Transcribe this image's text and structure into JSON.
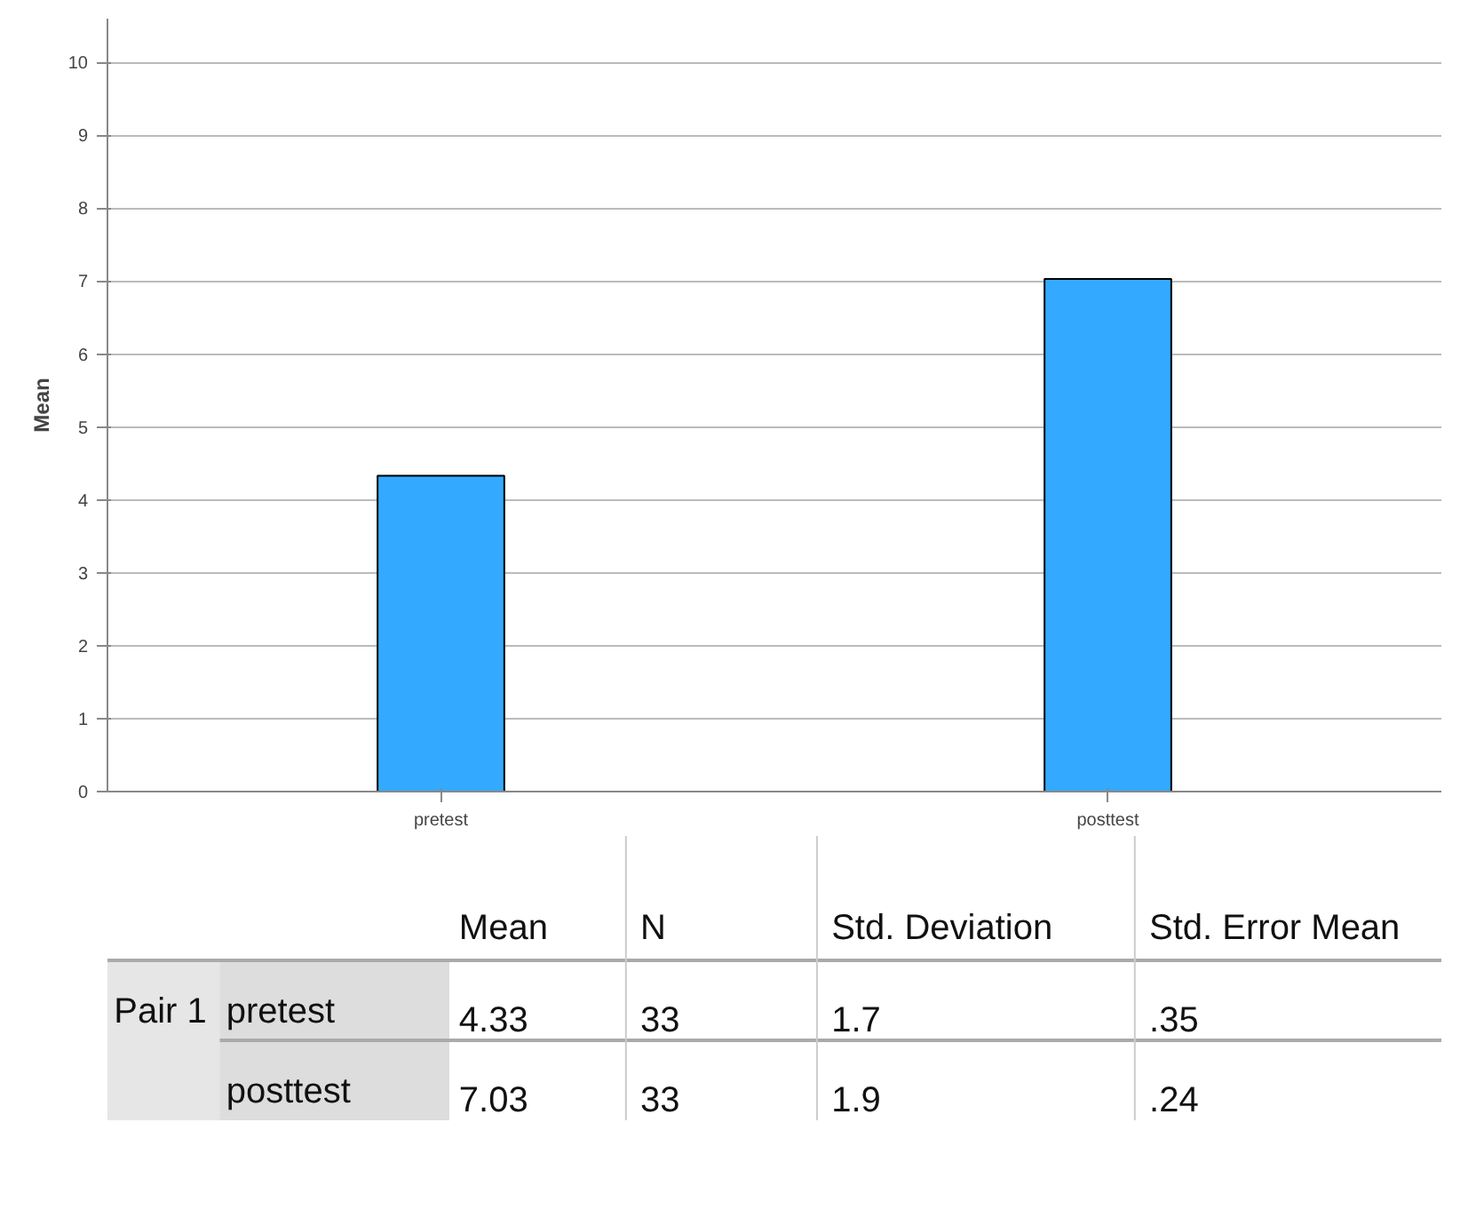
{
  "chart_data": {
    "type": "bar",
    "ylabel": "Mean",
    "categories": [
      "pretest",
      "posttest"
    ],
    "values": [
      4.33,
      7.03
    ],
    "color": "#33aaff",
    "ylim": [
      0,
      10.6
    ],
    "yticks": [
      0,
      1,
      2,
      3,
      4,
      5,
      6,
      7,
      8,
      9,
      10
    ],
    "grid": "y",
    "annotations": [
      "Mean",
      "N",
      "Std. Deviation",
      "Std. Error Mean",
      "Pair 1",
      "4.33",
      "33",
      "1.7",
      ".35",
      "7.03",
      "33",
      "1.9",
      ".24"
    ]
  }
}
